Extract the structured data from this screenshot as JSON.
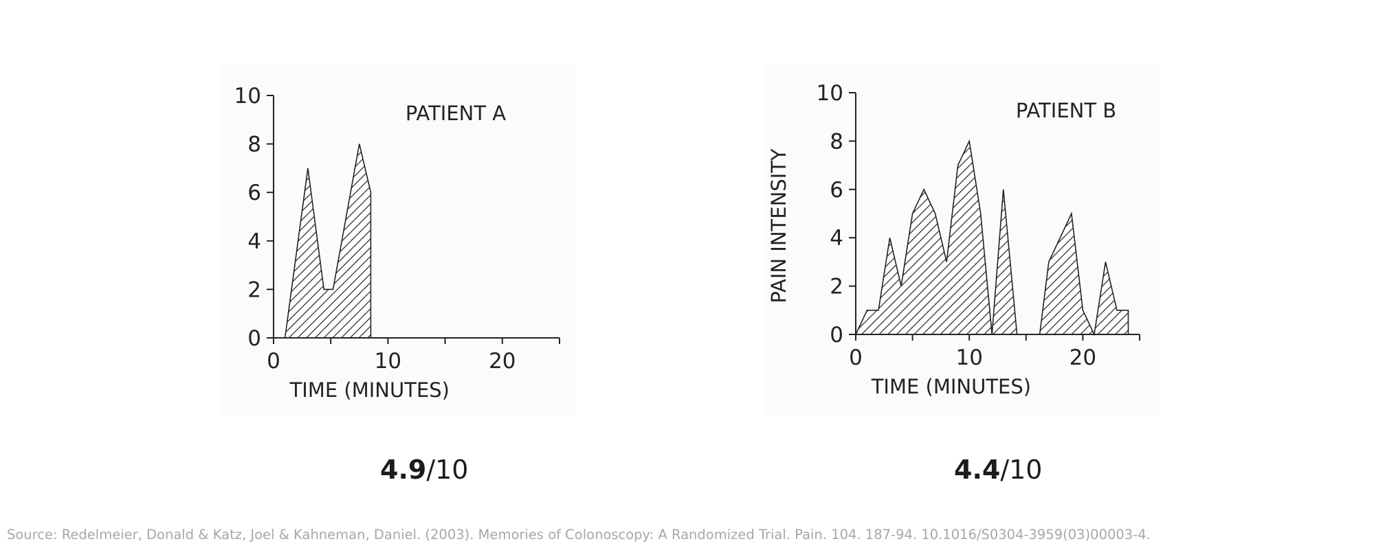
{
  "chart_data": [
    {
      "type": "area",
      "title": "PATIENT A",
      "xlabel": "TIME (MINUTES)",
      "ylabel": "",
      "xlim": [
        0,
        25
      ],
      "ylim": [
        0,
        10
      ],
      "xticks": [
        0,
        10,
        20
      ],
      "yticks": [
        0,
        2,
        4,
        6,
        8,
        10
      ],
      "fill_pattern": "diagonal-hatch",
      "points": [
        [
          1,
          0
        ],
        [
          3,
          7
        ],
        [
          4.4,
          2
        ],
        [
          5.2,
          2
        ],
        [
          7.5,
          8
        ],
        [
          8.5,
          6
        ],
        [
          8.5,
          0
        ]
      ]
    },
    {
      "type": "area",
      "title": "PATIENT B",
      "xlabel": "TIME (MINUTES)",
      "ylabel": "PAIN INTENSITY",
      "xlim": [
        0,
        25
      ],
      "ylim": [
        0,
        10
      ],
      "xticks": [
        0,
        10,
        20
      ],
      "yticks": [
        0,
        2,
        4,
        6,
        8,
        10
      ],
      "fill_pattern": "diagonal-hatch",
      "points": [
        [
          0,
          0
        ],
        [
          1,
          1
        ],
        [
          2,
          1
        ],
        [
          3,
          4
        ],
        [
          4,
          2
        ],
        [
          5,
          5
        ],
        [
          6,
          6
        ],
        [
          7,
          5
        ],
        [
          8,
          3
        ],
        [
          9,
          7
        ],
        [
          10,
          8
        ],
        [
          11,
          5
        ],
        [
          12,
          0
        ],
        [
          13,
          6
        ],
        [
          14.2,
          0
        ],
        [
          16.2,
          0
        ],
        [
          17,
          3
        ],
        [
          19,
          5
        ],
        [
          20,
          1
        ],
        [
          21,
          0
        ],
        [
          22,
          3
        ],
        [
          23,
          1
        ],
        [
          24,
          1
        ],
        [
          24,
          0
        ]
      ]
    }
  ],
  "scores": [
    {
      "value": "4.9",
      "scale": "/10"
    },
    {
      "value": "4.4",
      "scale": "/10"
    }
  ],
  "source": "Source: Redelmeier, Donald & Katz, Joel & Kahneman, Daniel. (2003). Memories of Colonoscopy: A Randomized Trial. Pain. 104. 187-94. 10.1016/S0304-3959(03)00003-4."
}
